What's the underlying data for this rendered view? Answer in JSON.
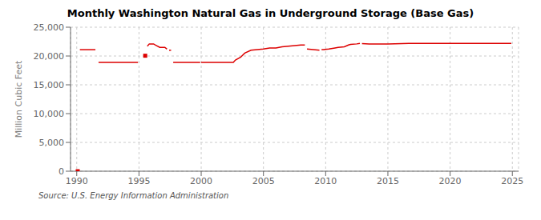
{
  "chart_data": {
    "type": "line",
    "title": "Monthly Washington Natural Gas in Underground Storage (Base Gas)",
    "ylabel": "Million Cubic Feet",
    "annotations": [
      "Source: U.S. Energy Information Administration"
    ],
    "color": "#dd0000",
    "marker": "square",
    "grid": true,
    "xlim": [
      1989.5,
      2025.5
    ],
    "ylim": [
      0,
      25000
    ],
    "xticks": [
      1990,
      1995,
      2000,
      2005,
      2010,
      2015,
      2020,
      2025
    ],
    "yticks": [
      0,
      {
        "value": 5000,
        "label": "5,000"
      },
      {
        "value": 10000,
        "label": "10,000"
      },
      {
        "value": 15000,
        "label": "15,000"
      },
      {
        "value": 20000,
        "label": "20,000"
      },
      {
        "value": 25000,
        "label": "25,000"
      }
    ],
    "x": [
      1990.08,
      null,
      1990.25,
      1991.5,
      null,
      1991.75,
      1994.92,
      null,
      1995.5,
      null,
      1995.67,
      1995.83,
      1996.17,
      1996.33,
      1996.67,
      1997.08,
      1997.25,
      null,
      1997.42,
      1997.58,
      null,
      1997.75,
      1999.92,
      null,
      2000.0,
      2002.58,
      2002.75,
      2003.17,
      2003.5,
      2004.0,
      2004.5,
      2005.0,
      2005.5,
      2006.0,
      2006.5,
      2007.0,
      2007.5,
      2008.0,
      2008.33,
      null,
      2008.5,
      2009.0,
      2009.5,
      null,
      2009.67,
      2009.83,
      2010.25,
      2010.75,
      2011.0,
      2011.5,
      2011.83,
      2012.0,
      2012.5,
      2012.75,
      null,
      2012.92,
      2013.5,
      2015.0,
      2017.0,
      2019.0,
      2021.0,
      2023.0,
      2024.92
    ],
    "values": [
      0,
      null,
      21100,
      21100,
      null,
      18900,
      18900,
      null,
      20050,
      null,
      21700,
      22100,
      22100,
      21900,
      21500,
      21500,
      21200,
      null,
      21000,
      21000,
      null,
      18900,
      18900,
      null,
      18900,
      18900,
      19300,
      19800,
      20500,
      21000,
      21100,
      21200,
      21400,
      21400,
      21600,
      21700,
      21800,
      21900,
      21900,
      null,
      21200,
      21100,
      21000,
      null,
      21100,
      21100,
      21200,
      21400,
      21500,
      21600,
      21900,
      22000,
      22100,
      22200,
      null,
      22150,
      22100,
      22100,
      22200,
      22200,
      22200,
      22200,
      22200
    ]
  }
}
